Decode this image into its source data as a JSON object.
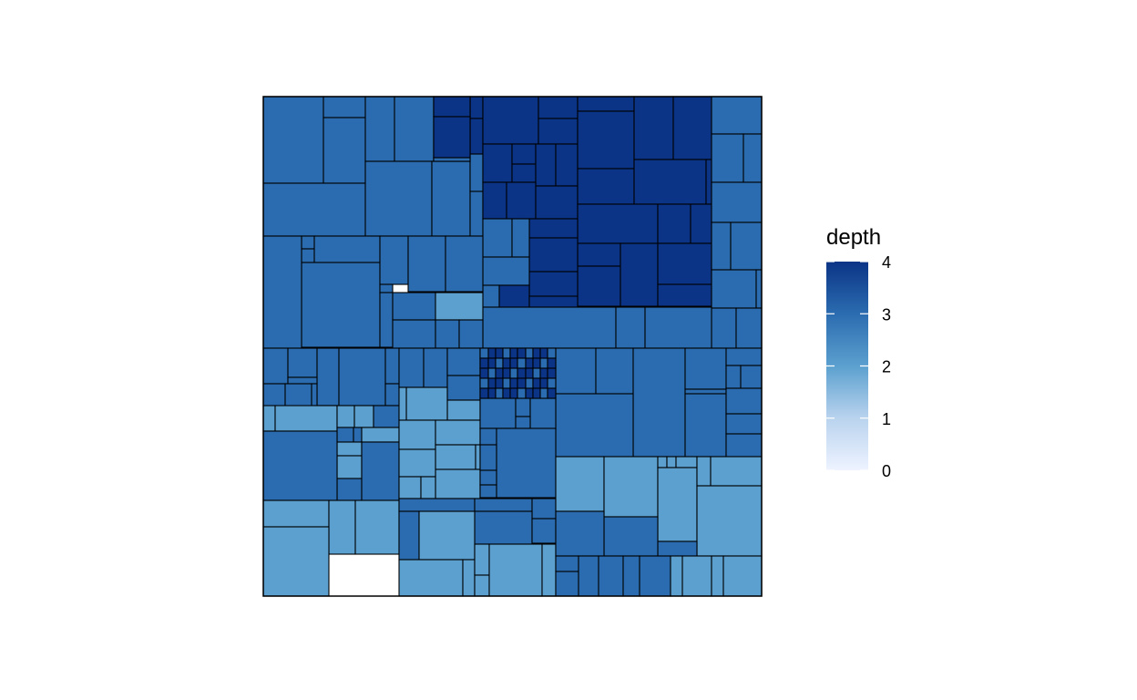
{
  "chart_data": {
    "type": "treemap",
    "fill_variable": "depth",
    "color_scale": {
      "low": "#eef3ff",
      "high": "#0b3486",
      "stops": [
        {
          "value": 0,
          "color": "#eef3ff"
        },
        {
          "value": 1,
          "color": "#b9d3ee"
        },
        {
          "value": 2,
          "color": "#5ba0cf"
        },
        {
          "value": 3,
          "color": "#2b6cb0"
        },
        {
          "value": 4,
          "color": "#0b3486"
        }
      ]
    },
    "legend": {
      "title": "depth",
      "ticks": [
        0,
        1,
        2,
        3,
        4
      ],
      "tick_labels": [
        "0",
        "1",
        "2",
        "3",
        "4"
      ],
      "position": "right"
    },
    "tile_depths": [
      3,
      3,
      3,
      3,
      3,
      3,
      3,
      3,
      4,
      4,
      3,
      3,
      3,
      3,
      3,
      4,
      4,
      4,
      4,
      4,
      4,
      4,
      4,
      4,
      4,
      4,
      4,
      4,
      4,
      4,
      4,
      4,
      4,
      4,
      4,
      4,
      4,
      4,
      4,
      4,
      4,
      4,
      4,
      4,
      3,
      3,
      3,
      3,
      4,
      4,
      4,
      4,
      3,
      3,
      3,
      3,
      3,
      3,
      3,
      3,
      3,
      3,
      3,
      3,
      3,
      3,
      3,
      3,
      3,
      3,
      3,
      3,
      3,
      3,
      3,
      3,
      2,
      3,
      3,
      3,
      3,
      3,
      3,
      3,
      3,
      3,
      3,
      3,
      3,
      3,
      3,
      3,
      2,
      2,
      2,
      2,
      3,
      3,
      3,
      2,
      2,
      2,
      3,
      3,
      3,
      3,
      3,
      3,
      3,
      2,
      2,
      2,
      2,
      2,
      2,
      2,
      2,
      2,
      2,
      2,
      2,
      2,
      2,
      2,
      2,
      2,
      3,
      3,
      3,
      3,
      3,
      3,
      3,
      3,
      3,
      3,
      3,
      3,
      3,
      3,
      3,
      3,
      3,
      3,
      3,
      3,
      3,
      3,
      3,
      3,
      3,
      3,
      3,
      3,
      2,
      2,
      2,
      2,
      2,
      2,
      2,
      2,
      2,
      2,
      2,
      2,
      2,
      2,
      2,
      2,
      3,
      3,
      3,
      3,
      3,
      3,
      3,
      3,
      3,
      2,
      2,
      2,
      2,
      2,
      2,
      2,
      2,
      2,
      2,
      2,
      2,
      2,
      2,
      2,
      2,
      2,
      2,
      2,
      2,
      2,
      2,
      2,
      2,
      2,
      2,
      2,
      2,
      2,
      2,
      2,
      2,
      2,
      2,
      2,
      2,
      2,
      2,
      2,
      2,
      2,
      2
    ]
  }
}
